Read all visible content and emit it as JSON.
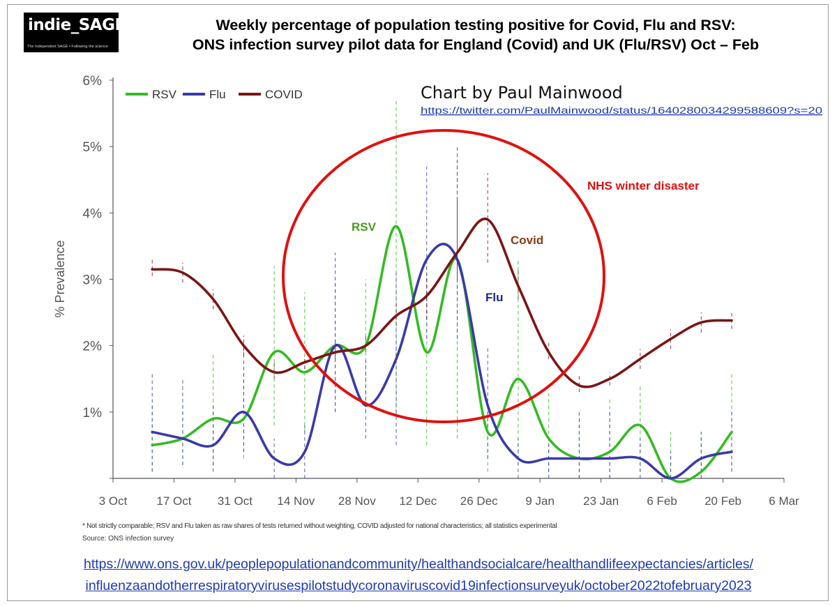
{
  "logo": {
    "text": "indie_SAGE",
    "tagline": "The Independent SAGE • Following the science"
  },
  "title": {
    "line1": "Weekly percentage of population testing positive for Covid, Flu and RSV:",
    "line2": "ONS infection survey pilot data for England (Covid) and UK (Flu/RSV) Oct – Feb"
  },
  "credit": {
    "text": "Chart by Paul Mainwood",
    "link": "https://twitter.com/PaulMainwood/status/1640280034299588609?s=20"
  },
  "annotations": {
    "nhs": "NHS winter disaster",
    "rsv": "RSV",
    "covid": "Covid",
    "flu": "Flu"
  },
  "footnote": "* Not strictly comparable; RSV and Flu taken as raw shares of tests returned without weighting, COVID adjusted for national characteristics; all statistics experimental",
  "source": "Source: ONS infection survey",
  "bottom_link": {
    "line1": "https://www.ons.gov.uk/peoplepopulationandcommunity/healthandsocialcare/healthandlifeexpectancies/articles/",
    "line2": "influenzaandotherrespiratoryvirusespilotstudycoronaviruscovid19infectionsurveyuk/october2022tofebruary2023"
  },
  "colors": {
    "rsv": "#33bb22",
    "flu": "#3a3aaa",
    "covid": "#7a1515",
    "circle": "#e01010",
    "nhs_text": "#e01010",
    "rsv_label": "#4a9a1e",
    "covid_label": "#8b3a0f",
    "flu_label": "#1a2a80",
    "axis": "#555555"
  },
  "chart_data": {
    "type": "line",
    "ylabel": "% Prevalence",
    "ylim": [
      0,
      6
    ],
    "y_ticks": [
      "",
      "1%",
      "2%",
      "3%",
      "4%",
      "5%",
      "6%"
    ],
    "x_ticks": [
      "3 Oct",
      "17 Oct",
      "31 Oct",
      "14 Nov",
      "28 Nov",
      "12 Dec",
      "26 Dec",
      "9 Jan",
      "23 Jan",
      "6 Feb",
      "20 Feb",
      "6 Mar"
    ],
    "legend_position": "top-left",
    "series": [
      {
        "name": "RSV",
        "color_key": "rsv",
        "x": [
          9,
          16,
          23,
          30,
          37,
          44,
          51,
          58,
          65,
          72,
          79,
          86,
          93,
          100,
          107,
          114,
          121,
          128,
          135,
          142
        ],
        "y": [
          0.5,
          0.6,
          0.9,
          0.9,
          1.9,
          1.6,
          2.0,
          2.0,
          3.8,
          1.9,
          3.3,
          0.7,
          1.5,
          0.6,
          0.3,
          0.4,
          0.8,
          0.0,
          0.1,
          0.7
        ],
        "ci_low": [
          0.1,
          0.2,
          0.2,
          0.3,
          0.8,
          0.7,
          1.0,
          1.0,
          1.0,
          0.5,
          0.6,
          0.1,
          0.2,
          0.1,
          0.0,
          0.0,
          0.1,
          0.0,
          0.0,
          0.1
        ],
        "ci_high": [
          1.1,
          1.1,
          1.9,
          1.6,
          3.2,
          2.8,
          3.0,
          3.0,
          5.7,
          3.2,
          4.8,
          1.2,
          3.3,
          1.3,
          0.9,
          1.2,
          1.4,
          0.7,
          0.7,
          1.6
        ]
      },
      {
        "name": "Flu",
        "color_key": "flu",
        "x": [
          9,
          16,
          23,
          30,
          37,
          44,
          51,
          58,
          65,
          72,
          79,
          86,
          93,
          100,
          107,
          114,
          121,
          128,
          135,
          142
        ],
        "y": [
          0.7,
          0.6,
          0.5,
          1.0,
          0.3,
          0.4,
          2.0,
          1.1,
          1.8,
          3.3,
          3.3,
          1.1,
          0.3,
          0.3,
          0.3,
          0.3,
          0.3,
          0.0,
          0.3,
          0.4
        ],
        "ci_low": [
          0.1,
          0.2,
          0.1,
          0.4,
          0.0,
          0.0,
          1.0,
          0.6,
          0.5,
          2.1,
          2.1,
          0.3,
          0.0,
          0.0,
          0.0,
          0.0,
          0.0,
          0.0,
          0.0,
          0.1
        ],
        "ci_high": [
          1.6,
          1.5,
          1.1,
          2.0,
          0.6,
          0.8,
          3.4,
          1.8,
          3.1,
          4.7,
          5.0,
          2.0,
          0.6,
          0.6,
          1.0,
          1.0,
          0.6,
          0.4,
          0.7,
          1.0
        ]
      },
      {
        "name": "COVID",
        "color_key": "covid",
        "x": [
          9,
          16,
          23,
          30,
          37,
          44,
          51,
          58,
          65,
          72,
          79,
          86,
          93,
          100,
          107,
          114,
          121,
          128,
          135,
          142
        ],
        "y": [
          3.15,
          3.1,
          2.7,
          2.0,
          1.6,
          1.75,
          1.9,
          2.0,
          2.45,
          2.75,
          3.4,
          3.9,
          2.9,
          1.9,
          1.4,
          1.5,
          1.8,
          2.1,
          2.35,
          2.38
        ],
        "ci_low": [
          3.05,
          2.95,
          2.55,
          1.85,
          1.5,
          1.65,
          1.8,
          1.9,
          2.3,
          2.4,
          3.0,
          3.25,
          2.7,
          1.8,
          1.3,
          1.4,
          1.65,
          1.95,
          2.2,
          2.25
        ],
        "ci_high": [
          3.3,
          3.25,
          2.85,
          2.15,
          1.75,
          1.85,
          2.05,
          2.15,
          2.65,
          3.05,
          4.2,
          4.6,
          3.15,
          2.05,
          1.55,
          1.6,
          1.95,
          2.25,
          2.5,
          2.5
        ]
      }
    ]
  }
}
